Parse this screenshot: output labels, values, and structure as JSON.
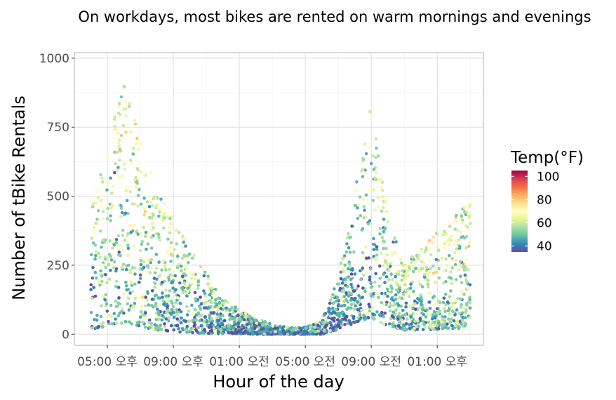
{
  "chart_data": {
    "type": "scatter",
    "title": "On workdays, most bikes are rented on warm mornings and evenings",
    "xlabel": "Hour of the day",
    "ylabel": "Number of tBike Rentals",
    "x_tick_labels": [
      "05:00 오후",
      "09:00 오후",
      "01:00 오전",
      "05:00 오전",
      "09:00 오전",
      "01:00 오후"
    ],
    "x_tick_hours": [
      17,
      21,
      25,
      29,
      33,
      37
    ],
    "xlim_hours": [
      15.0,
      39.8
    ],
    "ylim": [
      -40,
      1020
    ],
    "y_ticks": [
      0,
      250,
      500,
      750,
      1000
    ],
    "y_tick_labels": [
      "0",
      "250",
      "500",
      "750",
      "1000"
    ],
    "color_legend": {
      "title": "Temp(°F)",
      "labels": [
        "100",
        "80",
        "60",
        "40"
      ],
      "values": [
        100,
        80,
        60,
        40
      ],
      "range": [
        35,
        105
      ],
      "gradient_stops": [
        "#5E4FA2",
        "#3288BD",
        "#66C2A5",
        "#ABDDA4",
        "#E6F598",
        "#FFFFBF",
        "#FEE08B",
        "#FDAE61",
        "#F46D43",
        "#D53E4F",
        "#9E0142"
      ]
    },
    "grid": true,
    "legend_position": "right",
    "hourly_profile": [
      {
        "hour": 16,
        "low": 15,
        "high": 470,
        "temp": 64
      },
      {
        "hour": 17,
        "low": 30,
        "high": 650,
        "temp": 71
      },
      {
        "hour": 18,
        "low": 40,
        "high": 975,
        "temp": 73
      },
      {
        "hour": 19,
        "low": 25,
        "high": 700,
        "temp": 72
      },
      {
        "hour": 20,
        "low": 15,
        "high": 520,
        "temp": 70
      },
      {
        "hour": 21,
        "low": 10,
        "high": 420,
        "temp": 68
      },
      {
        "hour": 22,
        "low": 5,
        "high": 330,
        "temp": 66
      },
      {
        "hour": 23,
        "low": 3,
        "high": 220,
        "temp": 64
      },
      {
        "hour": 24,
        "low": 2,
        "high": 130,
        "temp": 62
      },
      {
        "hour": 25,
        "low": 2,
        "high": 90,
        "temp": 60
      },
      {
        "hour": 26,
        "low": 0,
        "high": 60,
        "temp": 58
      },
      {
        "hour": 27,
        "low": 0,
        "high": 35,
        "temp": 57
      },
      {
        "hour": 28,
        "low": 0,
        "high": 25,
        "temp": 56
      },
      {
        "hour": 29,
        "low": 0,
        "high": 25,
        "temp": 56
      },
      {
        "hour": 30,
        "low": 0,
        "high": 50,
        "temp": 57
      },
      {
        "hour": 31,
        "low": 15,
        "high": 210,
        "temp": 60
      },
      {
        "hour": 32,
        "low": 40,
        "high": 520,
        "temp": 63
      },
      {
        "hour": 33,
        "low": 60,
        "high": 835,
        "temp": 66
      },
      {
        "hour": 34,
        "low": 30,
        "high": 440,
        "temp": 68
      },
      {
        "hour": 35,
        "low": 15,
        "high": 260,
        "temp": 70
      },
      {
        "hour": 36,
        "low": 15,
        "high": 310,
        "temp": 71
      },
      {
        "hour": 37,
        "low": 15,
        "high": 380,
        "temp": 72
      },
      {
        "hour": 38,
        "low": 20,
        "high": 420,
        "temp": 72
      },
      {
        "hour": 39,
        "low": 20,
        "high": 490,
        "temp": 71
      }
    ]
  }
}
